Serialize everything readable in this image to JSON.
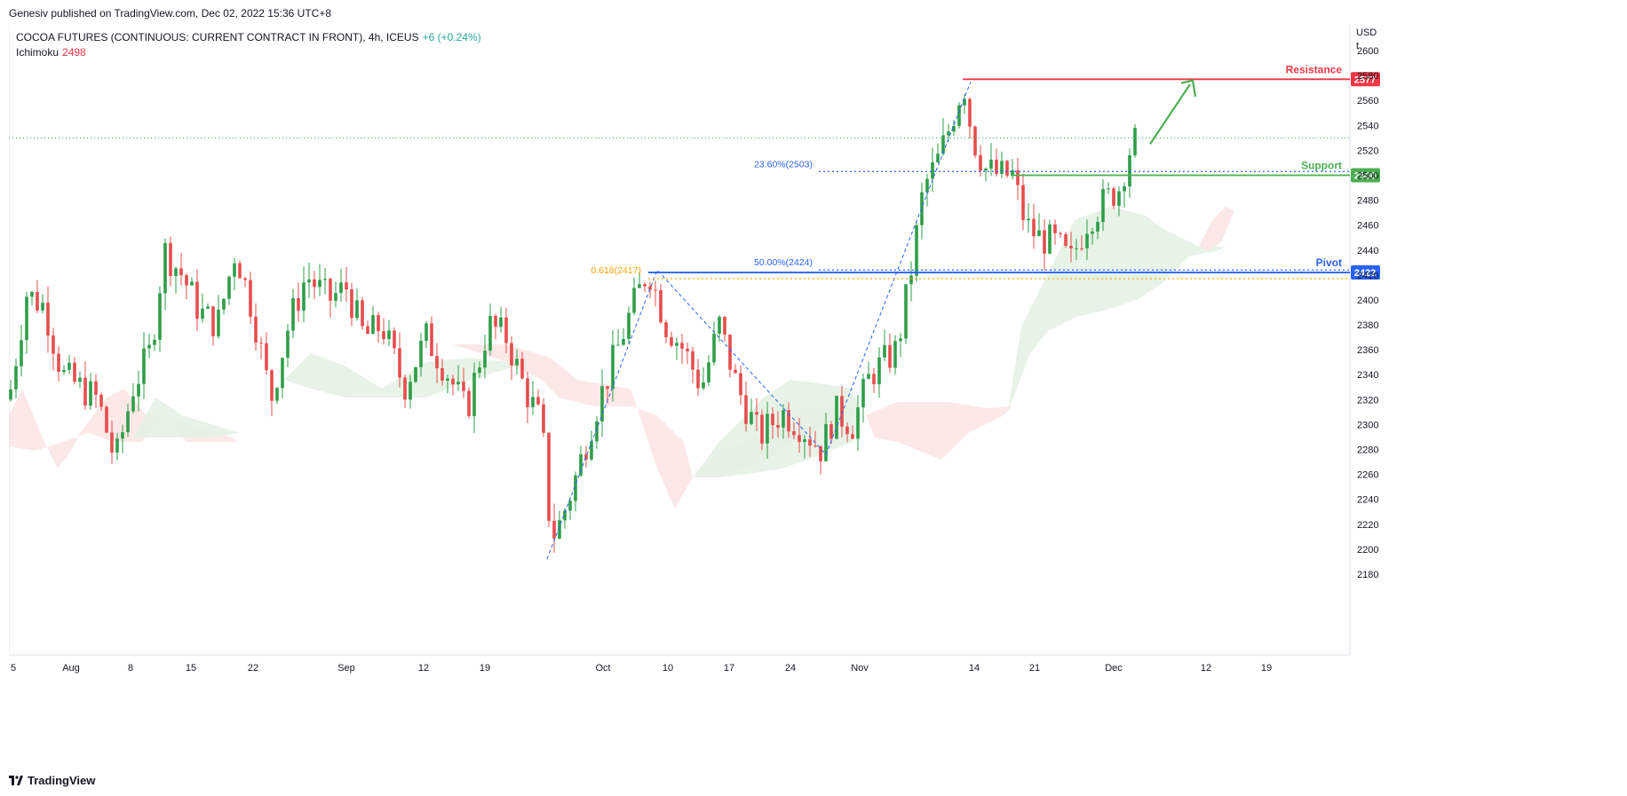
{
  "header": {
    "publish_line": "Genesiv published on TradingView.com, Dec 02, 2022 15:36 UTC+8"
  },
  "legend": {
    "symbol": "COCOA FUTURES (CONTINUOUS: CURRENT CONTRACT IN FRONT), 4h, ICEUS",
    "change": "+6 (+0.24%)",
    "indicator_name": "Ichimoku",
    "indicator_value": "2498"
  },
  "axis": {
    "currency": "USD",
    "unit": "t"
  },
  "footer": {
    "brand": "TradingView"
  },
  "colors": {
    "up": "#26a69a",
    "up_candle": "#2e9e48",
    "down": "#e74c4c",
    "resistance": "#f23645",
    "support": "#4caf50",
    "pivot": "#2962ff",
    "fib_618": "#f0a30a",
    "fib_blue": "#2962ff",
    "cloud_green": "#e3f1e3",
    "cloud_red": "#fde4e4",
    "arrow": "#4caf50"
  },
  "chart_data": {
    "type": "candlestick",
    "y_range": [
      2170,
      2620
    ],
    "y_ticks": [
      2180,
      2200,
      2220,
      2240,
      2260,
      2280,
      2300,
      2320,
      2340,
      2360,
      2380,
      2400,
      2420,
      2440,
      2460,
      2480,
      2500,
      2520,
      2540,
      2560,
      2580,
      2600
    ],
    "x_ticks": [
      "5",
      "Aug",
      "8",
      "15",
      "22",
      "Sep",
      "12",
      "19",
      "Oct",
      "10",
      "17",
      "24",
      "Nov",
      "14",
      "21",
      "Dec",
      "12",
      "19"
    ],
    "last_price": 2530,
    "levels": [
      {
        "name": "Resistance",
        "value": 2577,
        "label": "2577"
      },
      {
        "name": "Support",
        "value": 2500,
        "label": "2500"
      },
      {
        "name": "Pivot",
        "value": 2422,
        "label": "2422"
      }
    ],
    "fib_labels": [
      {
        "text": "23.60%(2503)",
        "value": 2503
      },
      {
        "text": "50.00%(2424)",
        "value": 2424
      },
      {
        "text": "0.618(2417)",
        "value": 2417
      }
    ],
    "series": [
      {
        "name": "Ichimoku",
        "values": [
          2498
        ]
      }
    ]
  }
}
